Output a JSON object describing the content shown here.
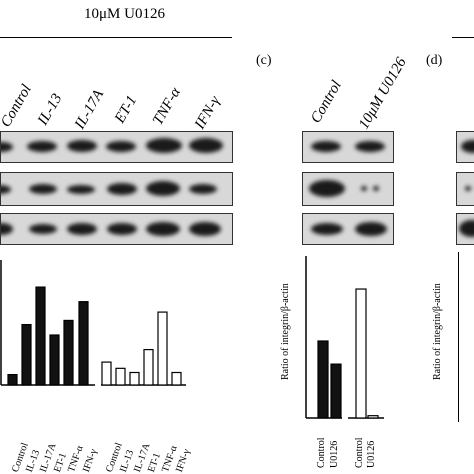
{
  "header": {
    "treatment": "10μM U0126"
  },
  "panel_c": {
    "label": "(c)",
    "lanes": [
      "Control",
      "10μM U0126"
    ],
    "ylabel": "Ratio of integrin/β-actin",
    "xlabels": [
      "Control",
      "U0126",
      "Control",
      "U0126"
    ]
  },
  "panel_d": {
    "label": "(d)",
    "ylabel": "Ratio of integrin/β-actin"
  },
  "panel_b": {
    "lanes": [
      "Control",
      "IL-13",
      "IL-17A",
      "ET-1",
      "TNF-α",
      "IFN-γ"
    ],
    "xlabels": [
      "Control",
      "IL-13",
      "IL-17A",
      "ET-1",
      "TNF-α",
      "IFN-γ",
      "Control",
      "IL-13",
      "IL-17A",
      "ET-1",
      "TNF-α",
      "IFN-γ"
    ]
  },
  "chart_data": [
    {
      "type": "bar",
      "categories": [
        "Control",
        "IL-13",
        "IL-17A",
        "ET-1",
        "TNF-α",
        "IFN-γ",
        "Control",
        "IL-13",
        "IL-17A",
        "ET-1",
        "TNF-α",
        "IFN-γ"
      ],
      "series": [
        {
          "values": [
            0.5,
            2.9,
            4.7,
            2.4,
            3.1,
            4.0,
            1.1,
            0.8,
            0.6,
            1.7,
            3.5,
            0.6
          ]
        }
      ],
      "fill": [
        "#111111",
        "#111111",
        "#111111",
        "#111111",
        "#111111",
        "#111111",
        "#ffffff",
        "#ffffff",
        "#ffffff",
        "#ffffff",
        "#ffffff",
        "#ffffff"
      ],
      "ylim": [
        0,
        6.0
      ]
    },
    {
      "type": "bar",
      "categories": [
        "Control",
        "U0126",
        "Control",
        "U0126"
      ],
      "series": [
        {
          "values": [
            2.0,
            1.4,
            3.35,
            0.06
          ]
        }
      ],
      "fill": [
        "#111111",
        "#111111",
        "#ffffff",
        "#ffffff"
      ],
      "ylim": [
        0,
        4.0
      ]
    }
  ]
}
